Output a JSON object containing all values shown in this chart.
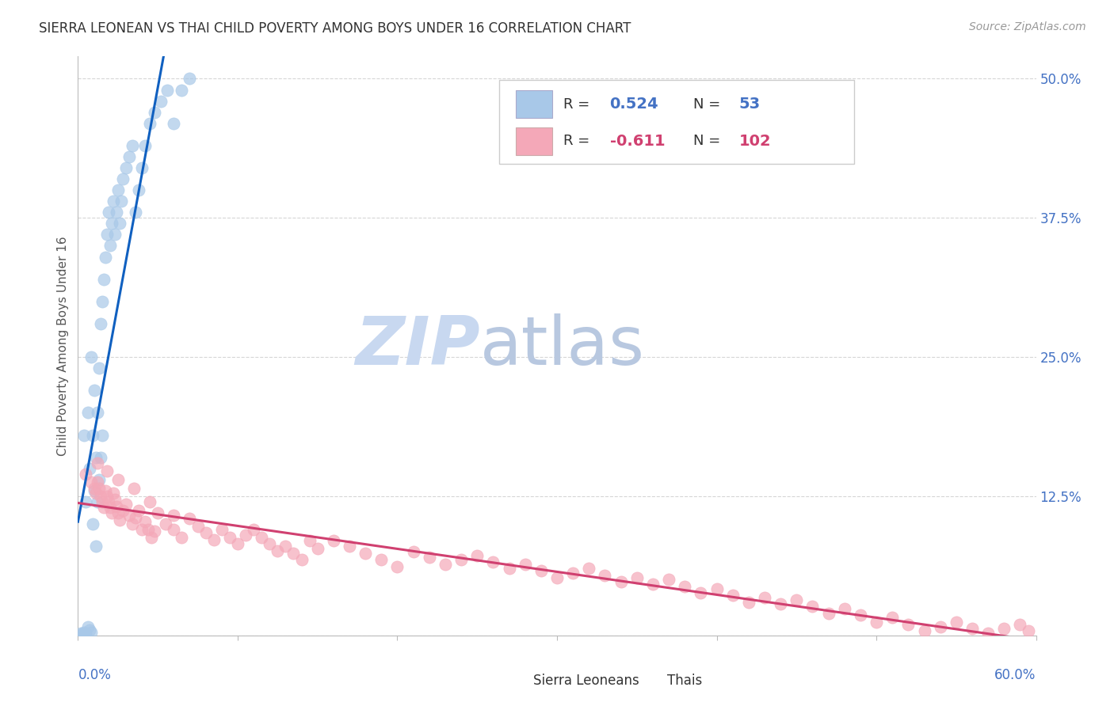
{
  "title": "SIERRA LEONEAN VS THAI CHILD POVERTY AMONG BOYS UNDER 16 CORRELATION CHART",
  "source": "Source: ZipAtlas.com",
  "ylabel": "Child Poverty Among Boys Under 16",
  "yticks": [
    0.0,
    0.125,
    0.25,
    0.375,
    0.5
  ],
  "ytick_labels": [
    "",
    "12.5%",
    "25.0%",
    "37.5%",
    "50.0%"
  ],
  "xlim": [
    0.0,
    0.6
  ],
  "ylim": [
    0.0,
    0.52
  ],
  "blue_R": "0.524",
  "blue_N": "53",
  "pink_R": "-0.611",
  "pink_N": "102",
  "blue_color": "#A8C8E8",
  "pink_color": "#F4A8B8",
  "blue_line_color": "#1060C0",
  "pink_line_color": "#D04070",
  "watermark_zip": "ZIP",
  "watermark_atlas": "atlas",
  "watermark_color_zip": "#C8D8F0",
  "watermark_color_atlas": "#B8C8E0",
  "legend_label_blue": "Sierra Leoneans",
  "legend_label_pink": "Thais",
  "blue_scatter_x": [
    0.002,
    0.003,
    0.004,
    0.004,
    0.005,
    0.005,
    0.006,
    0.006,
    0.007,
    0.007,
    0.008,
    0.008,
    0.009,
    0.009,
    0.01,
    0.01,
    0.011,
    0.011,
    0.012,
    0.012,
    0.013,
    0.013,
    0.014,
    0.014,
    0.015,
    0.015,
    0.016,
    0.017,
    0.018,
    0.019,
    0.02,
    0.021,
    0.022,
    0.023,
    0.024,
    0.025,
    0.026,
    0.027,
    0.028,
    0.03,
    0.032,
    0.034,
    0.036,
    0.038,
    0.04,
    0.042,
    0.045,
    0.048,
    0.052,
    0.056,
    0.06,
    0.065,
    0.07
  ],
  "blue_scatter_y": [
    0.002,
    0.001,
    0.003,
    0.18,
    0.002,
    0.12,
    0.008,
    0.2,
    0.005,
    0.15,
    0.003,
    0.25,
    0.18,
    0.1,
    0.13,
    0.22,
    0.16,
    0.08,
    0.2,
    0.12,
    0.24,
    0.14,
    0.28,
    0.16,
    0.3,
    0.18,
    0.32,
    0.34,
    0.36,
    0.38,
    0.35,
    0.37,
    0.39,
    0.36,
    0.38,
    0.4,
    0.37,
    0.39,
    0.41,
    0.42,
    0.43,
    0.44,
    0.38,
    0.4,
    0.42,
    0.44,
    0.46,
    0.47,
    0.48,
    0.49,
    0.46,
    0.49,
    0.5
  ],
  "pink_scatter_x": [
    0.005,
    0.008,
    0.01,
    0.011,
    0.012,
    0.013,
    0.014,
    0.015,
    0.016,
    0.017,
    0.018,
    0.019,
    0.02,
    0.021,
    0.022,
    0.023,
    0.024,
    0.025,
    0.026,
    0.028,
    0.03,
    0.032,
    0.034,
    0.036,
    0.038,
    0.04,
    0.042,
    0.044,
    0.046,
    0.048,
    0.05,
    0.055,
    0.06,
    0.065,
    0.07,
    0.075,
    0.08,
    0.085,
    0.09,
    0.095,
    0.1,
    0.105,
    0.11,
    0.115,
    0.12,
    0.125,
    0.13,
    0.135,
    0.14,
    0.145,
    0.15,
    0.16,
    0.17,
    0.18,
    0.19,
    0.2,
    0.21,
    0.22,
    0.23,
    0.24,
    0.25,
    0.26,
    0.27,
    0.28,
    0.29,
    0.3,
    0.31,
    0.32,
    0.33,
    0.34,
    0.35,
    0.36,
    0.37,
    0.38,
    0.39,
    0.4,
    0.41,
    0.42,
    0.43,
    0.44,
    0.45,
    0.46,
    0.47,
    0.48,
    0.49,
    0.5,
    0.51,
    0.52,
    0.53,
    0.54,
    0.55,
    0.56,
    0.57,
    0.58,
    0.59,
    0.595,
    0.012,
    0.018,
    0.025,
    0.035,
    0.045,
    0.06
  ],
  "pink_scatter_y": [
    0.145,
    0.138,
    0.132,
    0.128,
    0.138,
    0.132,
    0.125,
    0.12,
    0.115,
    0.13,
    0.125,
    0.12,
    0.115,
    0.11,
    0.128,
    0.122,
    0.116,
    0.11,
    0.104,
    0.112,
    0.118,
    0.108,
    0.1,
    0.106,
    0.112,
    0.095,
    0.102,
    0.095,
    0.088,
    0.094,
    0.11,
    0.1,
    0.095,
    0.088,
    0.105,
    0.098,
    0.092,
    0.086,
    0.095,
    0.088,
    0.082,
    0.09,
    0.095,
    0.088,
    0.082,
    0.076,
    0.08,
    0.074,
    0.068,
    0.085,
    0.078,
    0.085,
    0.08,
    0.074,
    0.068,
    0.062,
    0.075,
    0.07,
    0.064,
    0.068,
    0.072,
    0.066,
    0.06,
    0.064,
    0.058,
    0.052,
    0.056,
    0.06,
    0.054,
    0.048,
    0.052,
    0.046,
    0.05,
    0.044,
    0.038,
    0.042,
    0.036,
    0.03,
    0.034,
    0.028,
    0.032,
    0.026,
    0.02,
    0.024,
    0.018,
    0.012,
    0.016,
    0.01,
    0.004,
    0.008,
    0.012,
    0.006,
    0.002,
    0.006,
    0.01,
    0.004,
    0.155,
    0.148,
    0.14,
    0.132,
    0.12,
    0.108
  ]
}
